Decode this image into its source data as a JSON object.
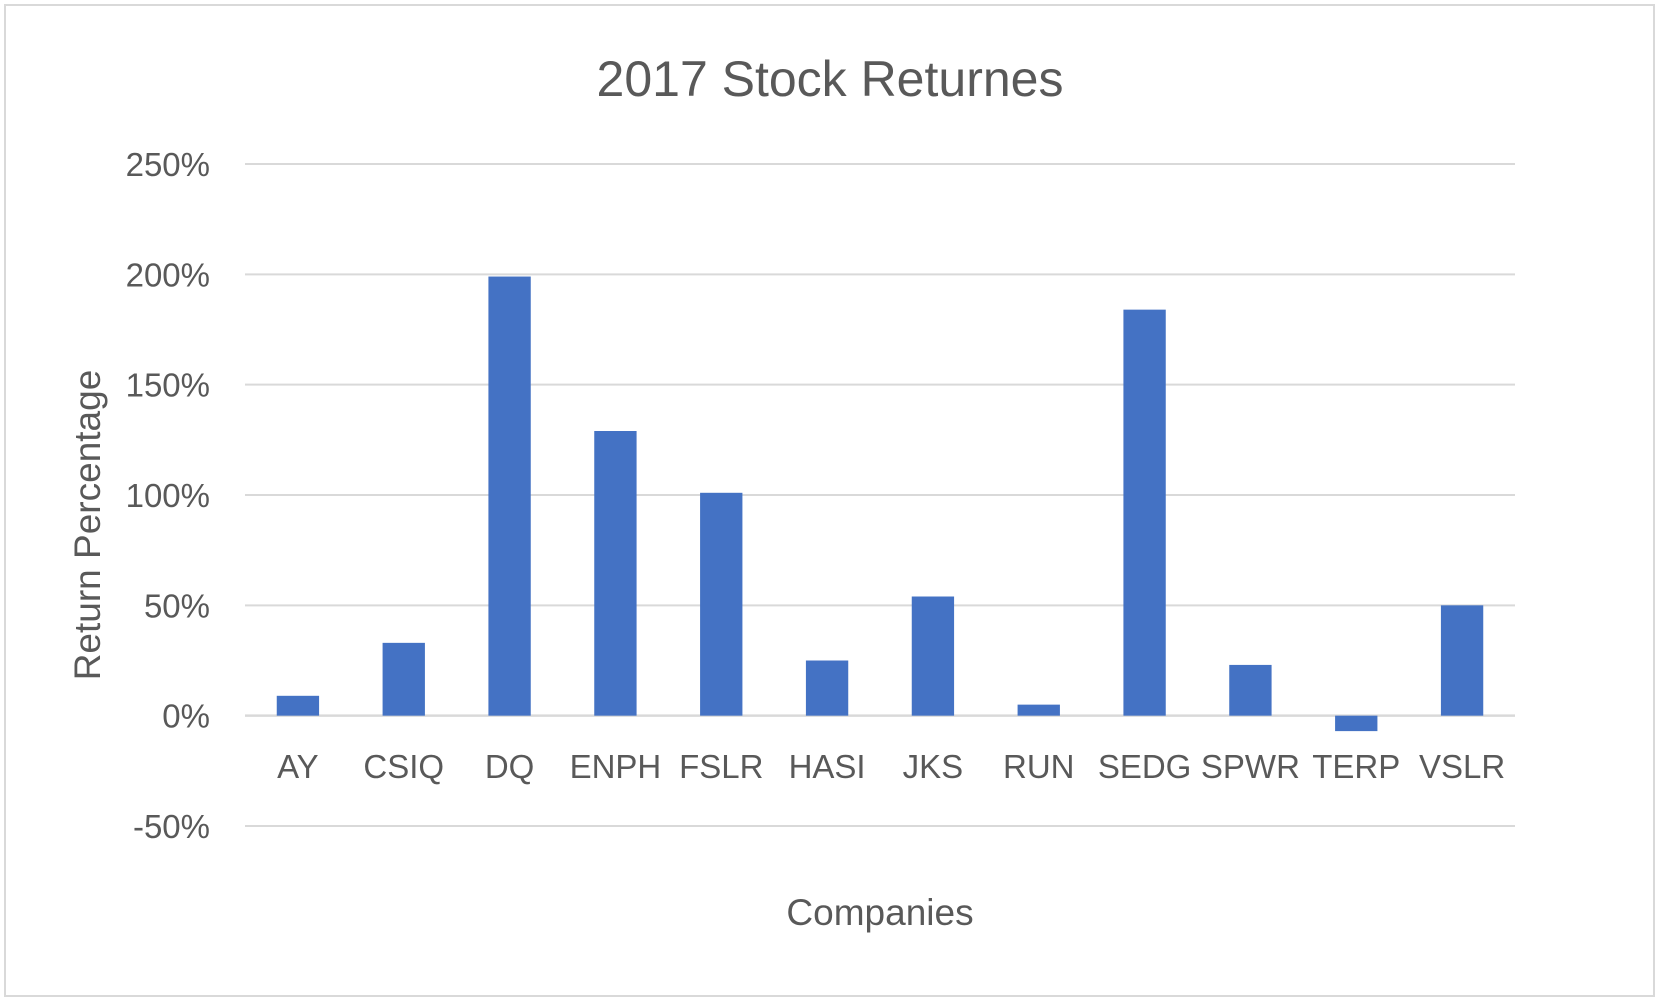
{
  "chart_data": {
    "type": "bar",
    "title": "2017 Stock Returnes",
    "xlabel": "Companies",
    "ylabel": "Return Percentage",
    "categories": [
      "AY",
      "CSIQ",
      "DQ",
      "ENPH",
      "FSLR",
      "HASI",
      "JKS",
      "RUN",
      "SEDG",
      "SPWR",
      "TERP",
      "VSLR"
    ],
    "values": [
      9,
      33,
      199,
      129,
      101,
      25,
      54,
      5,
      184,
      23,
      -7,
      50
    ],
    "value_unit": "%",
    "ylim": [
      -50,
      250
    ],
    "yticks": [
      -50,
      0,
      50,
      100,
      150,
      200,
      250
    ],
    "ytick_labels": [
      "-50%",
      "0%",
      "50%",
      "100%",
      "150%",
      "200%",
      "250%"
    ],
    "grid": true,
    "legend": "none",
    "colors": {
      "bar": "#4472C4",
      "grid": "#d9d9d9",
      "text": "#595959",
      "border": "#d9d9d9"
    }
  }
}
